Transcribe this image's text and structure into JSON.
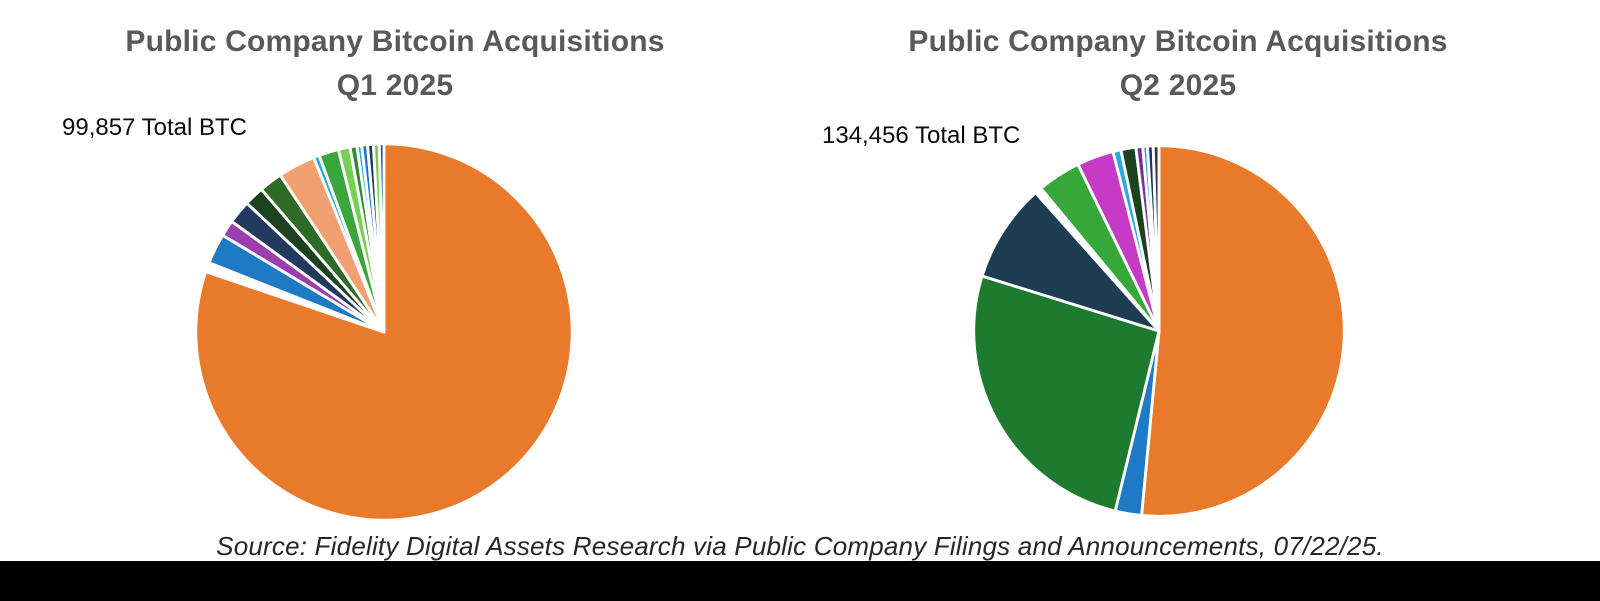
{
  "charts": [
    {
      "title_line1": "Public Company Bitcoin Acquisitions",
      "title_line2": "Q1 2025",
      "total_label": "99,857 Total BTC"
    },
    {
      "title_line1": "Public Company Bitcoin Acquisitions",
      "title_line2": "Q2 2025",
      "total_label": "134,456 Total BTC"
    }
  ],
  "source": "Source: Fidelity Digital Assets Research via Public Company Filings and Announcements, 07/22/25.",
  "accent_colors": {
    "title_gray": "#595959",
    "primary_orange": "#E97A2B",
    "bottom_bar_black": "#000000"
  },
  "chart_data": [
    {
      "type": "pie",
      "title": "Public Company Bitcoin Acquisitions Q1 2025",
      "annotation": "99,857 Total BTC",
      "total_btc": 99857,
      "values_are": "percent_of_total",
      "start_angle_deg": 0,
      "direction": "clockwise",
      "legend": "none",
      "slices": [
        {
          "value": 80.2,
          "color": "#E97A2B"
        },
        {
          "value": 0.8,
          "color": "#FFFFFF"
        },
        {
          "value": 2.6,
          "color": "#1F7AC5"
        },
        {
          "value": 1.4,
          "color": "#9B3EAE"
        },
        {
          "value": 2.0,
          "color": "#223A5E"
        },
        {
          "value": 1.7,
          "color": "#1C4220"
        },
        {
          "value": 2.0,
          "color": "#2E6B26"
        },
        {
          "value": 3.2,
          "color": "#F0A071"
        },
        {
          "value": 0.5,
          "color": "#29ABE2"
        },
        {
          "value": 1.7,
          "color": "#3BA63C"
        },
        {
          "value": 1.0,
          "color": "#77D053"
        },
        {
          "value": 0.6,
          "color": "#2E8B2E"
        },
        {
          "value": 0.4,
          "color": "#29ABE2"
        },
        {
          "value": 0.5,
          "color": "#1F7AC5"
        },
        {
          "value": 0.5,
          "color": "#223A5E"
        },
        {
          "value": 0.5,
          "color": "#6FCF46"
        },
        {
          "value": 0.4,
          "color": "#145A8C"
        }
      ]
    },
    {
      "type": "pie",
      "title": "Public Company Bitcoin Acquisitions Q2 2025",
      "annotation": "134,456 Total BTC",
      "total_btc": 134456,
      "values_are": "percent_of_total",
      "start_angle_deg": 0,
      "direction": "clockwise",
      "legend": "none",
      "slices": [
        {
          "value": 51.5,
          "color": "#E97A2B"
        },
        {
          "value": 2.3,
          "color": "#1F7AC5"
        },
        {
          "value": 26.0,
          "color": "#1E7A2E"
        },
        {
          "value": 8.6,
          "color": "#1C3D52"
        },
        {
          "value": 0.6,
          "color": "#FFFFFF"
        },
        {
          "value": 3.8,
          "color": "#35A839"
        },
        {
          "value": 3.2,
          "color": "#C63BC6"
        },
        {
          "value": 0.7,
          "color": "#29ABE2"
        },
        {
          "value": 1.3,
          "color": "#1C4220"
        },
        {
          "value": 0.6,
          "color": "#7A2E9B"
        },
        {
          "value": 0.4,
          "color": "#29ABE2"
        },
        {
          "value": 0.5,
          "color": "#223A5E"
        },
        {
          "value": 0.5,
          "color": "#3A3A3A"
        }
      ]
    }
  ]
}
